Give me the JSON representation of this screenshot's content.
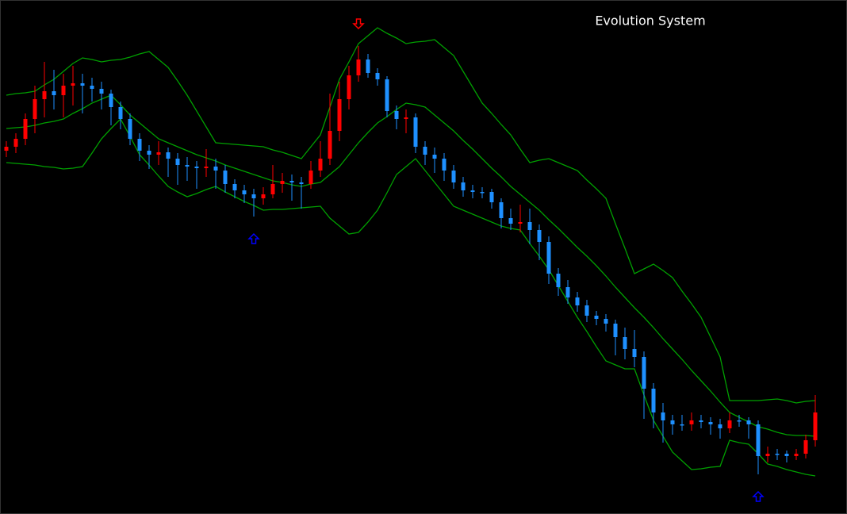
{
  "chart_data": {
    "type": "candlestick",
    "title": "Evolution System",
    "ylim": [
      1000,
      1648
    ],
    "up_color": "#ff0000",
    "down_color": "#1e90ff",
    "band_color": "#00a000",
    "up_arrow_color": "#0000ff",
    "down_arrow_color": "#ff0000",
    "up_arrows": [
      26,
      79
    ],
    "down_arrows": [
      37
    ],
    "ohlc": [
      [
        1458,
        1470,
        1450,
        1463
      ],
      [
        1463,
        1480,
        1455,
        1473
      ],
      [
        1473,
        1505,
        1465,
        1498
      ],
      [
        1498,
        1540,
        1480,
        1523
      ],
      [
        1523,
        1570,
        1500,
        1533
      ],
      [
        1533,
        1560,
        1510,
        1528
      ],
      [
        1528,
        1555,
        1500,
        1540
      ],
      [
        1540,
        1565,
        1515,
        1543
      ],
      [
        1543,
        1555,
        1505,
        1540
      ],
      [
        1540,
        1550,
        1520,
        1536
      ],
      [
        1536,
        1545,
        1510,
        1530
      ],
      [
        1530,
        1535,
        1490,
        1513
      ],
      [
        1513,
        1520,
        1485,
        1498
      ],
      [
        1498,
        1505,
        1465,
        1473
      ],
      [
        1473,
        1480,
        1445,
        1458
      ],
      [
        1458,
        1465,
        1435,
        1453
      ],
      [
        1453,
        1470,
        1440,
        1456
      ],
      [
        1456,
        1462,
        1425,
        1448
      ],
      [
        1448,
        1455,
        1415,
        1440
      ],
      [
        1440,
        1450,
        1420,
        1438
      ],
      [
        1438,
        1445,
        1410,
        1436
      ],
      [
        1436,
        1460,
        1425,
        1438
      ],
      [
        1438,
        1448,
        1410,
        1433
      ],
      [
        1433,
        1440,
        1405,
        1416
      ],
      [
        1416,
        1422,
        1398,
        1408
      ],
      [
        1408,
        1415,
        1392,
        1403
      ],
      [
        1403,
        1410,
        1375,
        1398
      ],
      [
        1398,
        1412,
        1390,
        1403
      ],
      [
        1403,
        1440,
        1398,
        1416
      ],
      [
        1416,
        1430,
        1405,
        1420
      ],
      [
        1420,
        1428,
        1395,
        1418
      ],
      [
        1418,
        1425,
        1385,
        1416
      ],
      [
        1416,
        1445,
        1410,
        1433
      ],
      [
        1433,
        1470,
        1425,
        1448
      ],
      [
        1448,
        1530,
        1440,
        1483
      ],
      [
        1483,
        1545,
        1470,
        1523
      ],
      [
        1523,
        1565,
        1510,
        1553
      ],
      [
        1553,
        1590,
        1545,
        1573
      ],
      [
        1573,
        1580,
        1550,
        1556
      ],
      [
        1556,
        1562,
        1540,
        1548
      ],
      [
        1548,
        1552,
        1500,
        1508
      ],
      [
        1508,
        1515,
        1485,
        1498
      ],
      [
        1498,
        1510,
        1480,
        1500
      ],
      [
        1500,
        1505,
        1455,
        1463
      ],
      [
        1463,
        1470,
        1440,
        1453
      ],
      [
        1453,
        1462,
        1430,
        1448
      ],
      [
        1448,
        1455,
        1420,
        1433
      ],
      [
        1433,
        1440,
        1410,
        1418
      ],
      [
        1418,
        1425,
        1400,
        1408
      ],
      [
        1408,
        1415,
        1398,
        1406
      ],
      [
        1406,
        1412,
        1398,
        1406
      ],
      [
        1406,
        1410,
        1385,
        1393
      ],
      [
        1393,
        1398,
        1360,
        1373
      ],
      [
        1373,
        1385,
        1358,
        1366
      ],
      [
        1366,
        1390,
        1355,
        1368
      ],
      [
        1368,
        1385,
        1340,
        1358
      ],
      [
        1358,
        1365,
        1320,
        1343
      ],
      [
        1343,
        1350,
        1290,
        1303
      ],
      [
        1303,
        1310,
        1275,
        1286
      ],
      [
        1286,
        1295,
        1265,
        1273
      ],
      [
        1273,
        1280,
        1255,
        1263
      ],
      [
        1263,
        1270,
        1242,
        1250
      ],
      [
        1250,
        1256,
        1238,
        1246
      ],
      [
        1246,
        1252,
        1230,
        1240
      ],
      [
        1240,
        1245,
        1200,
        1223
      ],
      [
        1223,
        1235,
        1195,
        1208
      ],
      [
        1208,
        1232,
        1185,
        1198
      ],
      [
        1198,
        1205,
        1120,
        1158
      ],
      [
        1158,
        1165,
        1108,
        1128
      ],
      [
        1128,
        1140,
        1090,
        1118
      ],
      [
        1118,
        1125,
        1100,
        1113
      ],
      [
        1113,
        1125,
        1105,
        1113
      ],
      [
        1113,
        1128,
        1105,
        1118
      ],
      [
        1118,
        1125,
        1108,
        1116
      ],
      [
        1116,
        1122,
        1100,
        1113
      ],
      [
        1113,
        1120,
        1095,
        1108
      ],
      [
        1108,
        1128,
        1102,
        1118
      ],
      [
        1118,
        1125,
        1110,
        1118
      ],
      [
        1118,
        1122,
        1095,
        1113
      ],
      [
        1113,
        1118,
        1050,
        1073
      ],
      [
        1073,
        1085,
        1065,
        1076
      ],
      [
        1076,
        1082,
        1068,
        1076
      ],
      [
        1076,
        1080,
        1065,
        1073
      ],
      [
        1073,
        1082,
        1068,
        1076
      ],
      [
        1076,
        1100,
        1070,
        1093
      ],
      [
        1093,
        1150,
        1085,
        1128
      ]
    ],
    "bands": {
      "upper": [
        1528,
        1530,
        1531,
        1533,
        1541,
        1548,
        1558,
        1568,
        1575,
        1573,
        1570,
        1572,
        1573,
        1576,
        1580,
        1583,
        1573,
        1563,
        1546,
        1528,
        1508,
        1488,
        1468,
        1467,
        1466,
        1465,
        1464,
        1463,
        1459,
        1456,
        1452,
        1448,
        1463,
        1478,
        1513,
        1548,
        1570,
        1593,
        1603,
        1613,
        1606,
        1600,
        1593,
        1595,
        1596,
        1598,
        1588,
        1578,
        1558,
        1538,
        1518,
        1505,
        1491,
        1478,
        1460,
        1443,
        1446,
        1448,
        1443,
        1438,
        1433,
        1421,
        1410,
        1398,
        1366,
        1335,
        1303,
        1309,
        1315,
        1307,
        1298,
        1281,
        1265,
        1248,
        1223,
        1198,
        1143,
        1143,
        1143,
        1143,
        1144,
        1145,
        1143,
        1140,
        1142,
        1143
      ],
      "middle": [
        1486,
        1487,
        1488,
        1490,
        1493,
        1495,
        1498,
        1505,
        1511,
        1518,
        1523,
        1528,
        1516,
        1503,
        1493,
        1483,
        1473,
        1468,
        1463,
        1458,
        1453,
        1449,
        1445,
        1440,
        1436,
        1432,
        1428,
        1424,
        1420,
        1418,
        1415,
        1413,
        1416,
        1418,
        1428,
        1438,
        1453,
        1468,
        1481,
        1493,
        1501,
        1510,
        1518,
        1516,
        1513,
        1503,
        1493,
        1483,
        1471,
        1460,
        1448,
        1436,
        1425,
        1413,
        1403,
        1393,
        1383,
        1371,
        1360,
        1348,
        1336,
        1325,
        1313,
        1300,
        1286,
        1273,
        1260,
        1248,
        1235,
        1221,
        1208,
        1195,
        1181,
        1168,
        1155,
        1141,
        1128,
        1122,
        1116,
        1110,
        1107,
        1103,
        1100,
        1099,
        1099,
        1098
      ],
      "lower": [
        1443,
        1442,
        1441,
        1440,
        1438,
        1437,
        1435,
        1436,
        1438,
        1455,
        1473,
        1486,
        1498,
        1476,
        1453,
        1440,
        1426,
        1413,
        1406,
        1400,
        1404,
        1409,
        1413,
        1406,
        1400,
        1394,
        1389,
        1383,
        1384,
        1384,
        1385,
        1386,
        1387,
        1388,
        1373,
        1363,
        1353,
        1355,
        1368,
        1383,
        1405,
        1428,
        1438,
        1448,
        1433,
        1418,
        1403,
        1388,
        1383,
        1378,
        1373,
        1368,
        1363,
        1360,
        1358,
        1341,
        1325,
        1308,
        1288,
        1268,
        1248,
        1230,
        1211,
        1193,
        1188,
        1183,
        1183,
        1150,
        1118,
        1098,
        1078,
        1067,
        1056,
        1057,
        1059,
        1060,
        1093,
        1090,
        1088,
        1076,
        1063,
        1060,
        1056,
        1053,
        1050,
        1048
      ]
    }
  }
}
